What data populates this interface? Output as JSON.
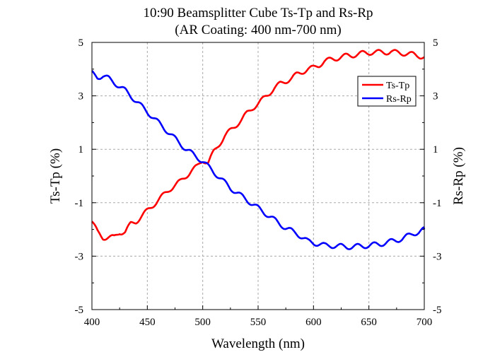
{
  "chart_data": {
    "type": "line",
    "title": [
      "10:90 Beamsplitter Cube Ts-Tp and Rs-Rp",
      "(AR Coating: 400 nm-700 nm)"
    ],
    "xlabel": "Wavelength (nm)",
    "ylabel_left": "Ts-Tp (%)",
    "ylabel_right": "Rs-Rp (%)",
    "xlim": [
      400,
      700
    ],
    "ylim": [
      -5,
      5
    ],
    "x_ticks": [
      400,
      450,
      500,
      550,
      600,
      650,
      700
    ],
    "y_ticks": [
      -5,
      -3,
      -1,
      1,
      3,
      5
    ],
    "grid": true,
    "legend_position": "top-right",
    "series": [
      {
        "name": "Ts-Tp",
        "color": "#ff0000",
        "x": [
          400,
          405,
          410,
          415,
          420,
          425,
          430,
          435,
          440,
          445,
          450,
          455,
          460,
          465,
          470,
          475,
          480,
          485,
          490,
          495,
          500,
          505,
          510,
          515,
          520,
          525,
          530,
          535,
          540,
          545,
          550,
          555,
          560,
          565,
          570,
          575,
          580,
          585,
          590,
          595,
          600,
          605,
          610,
          615,
          620,
          625,
          630,
          635,
          640,
          645,
          650,
          655,
          660,
          665,
          670,
          675,
          680,
          685,
          690,
          695,
          700
        ],
        "values": [
          -1.7,
          -2.1,
          -2.3,
          -2.3,
          -2.3,
          -2.1,
          -2.1,
          -1.8,
          -1.7,
          -1.5,
          -1.3,
          -1.1,
          -0.9,
          -0.7,
          -0.5,
          -0.35,
          -0.2,
          0.0,
          0.2,
          0.35,
          0.6,
          0.5,
          0.9,
          1.2,
          1.5,
          1.7,
          1.9,
          2.1,
          2.35,
          2.55,
          2.7,
          2.9,
          3.1,
          3.3,
          3.45,
          3.55,
          3.65,
          3.8,
          3.9,
          4.0,
          4.05,
          4.15,
          4.3,
          4.35,
          4.4,
          4.45,
          4.5,
          4.52,
          4.55,
          4.6,
          4.62,
          4.63,
          4.63,
          4.63,
          4.65,
          4.62,
          4.6,
          4.57,
          4.55,
          4.5,
          4.45
        ]
      },
      {
        "name": "Rs-Rp",
        "color": "#0000ff",
        "x": [
          400,
          405,
          410,
          415,
          420,
          425,
          430,
          435,
          440,
          445,
          450,
          455,
          460,
          465,
          470,
          475,
          480,
          485,
          490,
          495,
          500,
          505,
          510,
          515,
          520,
          525,
          530,
          535,
          540,
          545,
          550,
          555,
          560,
          565,
          570,
          575,
          580,
          585,
          590,
          595,
          600,
          605,
          610,
          615,
          620,
          625,
          630,
          635,
          640,
          645,
          650,
          655,
          660,
          665,
          670,
          675,
          680,
          685,
          690,
          695,
          700
        ],
        "values": [
          3.85,
          3.7,
          3.75,
          3.65,
          3.5,
          3.35,
          3.2,
          3.0,
          2.8,
          2.6,
          2.4,
          2.2,
          2.0,
          1.8,
          1.6,
          1.4,
          1.2,
          1.0,
          0.85,
          0.7,
          0.55,
          0.35,
          0.15,
          -0.05,
          -0.25,
          -0.45,
          -0.6,
          -0.75,
          -0.9,
          -1.05,
          -1.2,
          -1.35,
          -1.5,
          -1.65,
          -1.8,
          -1.95,
          -2.05,
          -2.15,
          -2.3,
          -2.45,
          -2.5,
          -2.55,
          -2.6,
          -2.6,
          -2.62,
          -2.63,
          -2.65,
          -2.65,
          -2.63,
          -2.62,
          -2.6,
          -2.57,
          -2.55,
          -2.5,
          -2.45,
          -2.4,
          -2.35,
          -2.25,
          -2.15,
          -2.1,
          -2.0
        ]
      }
    ]
  }
}
